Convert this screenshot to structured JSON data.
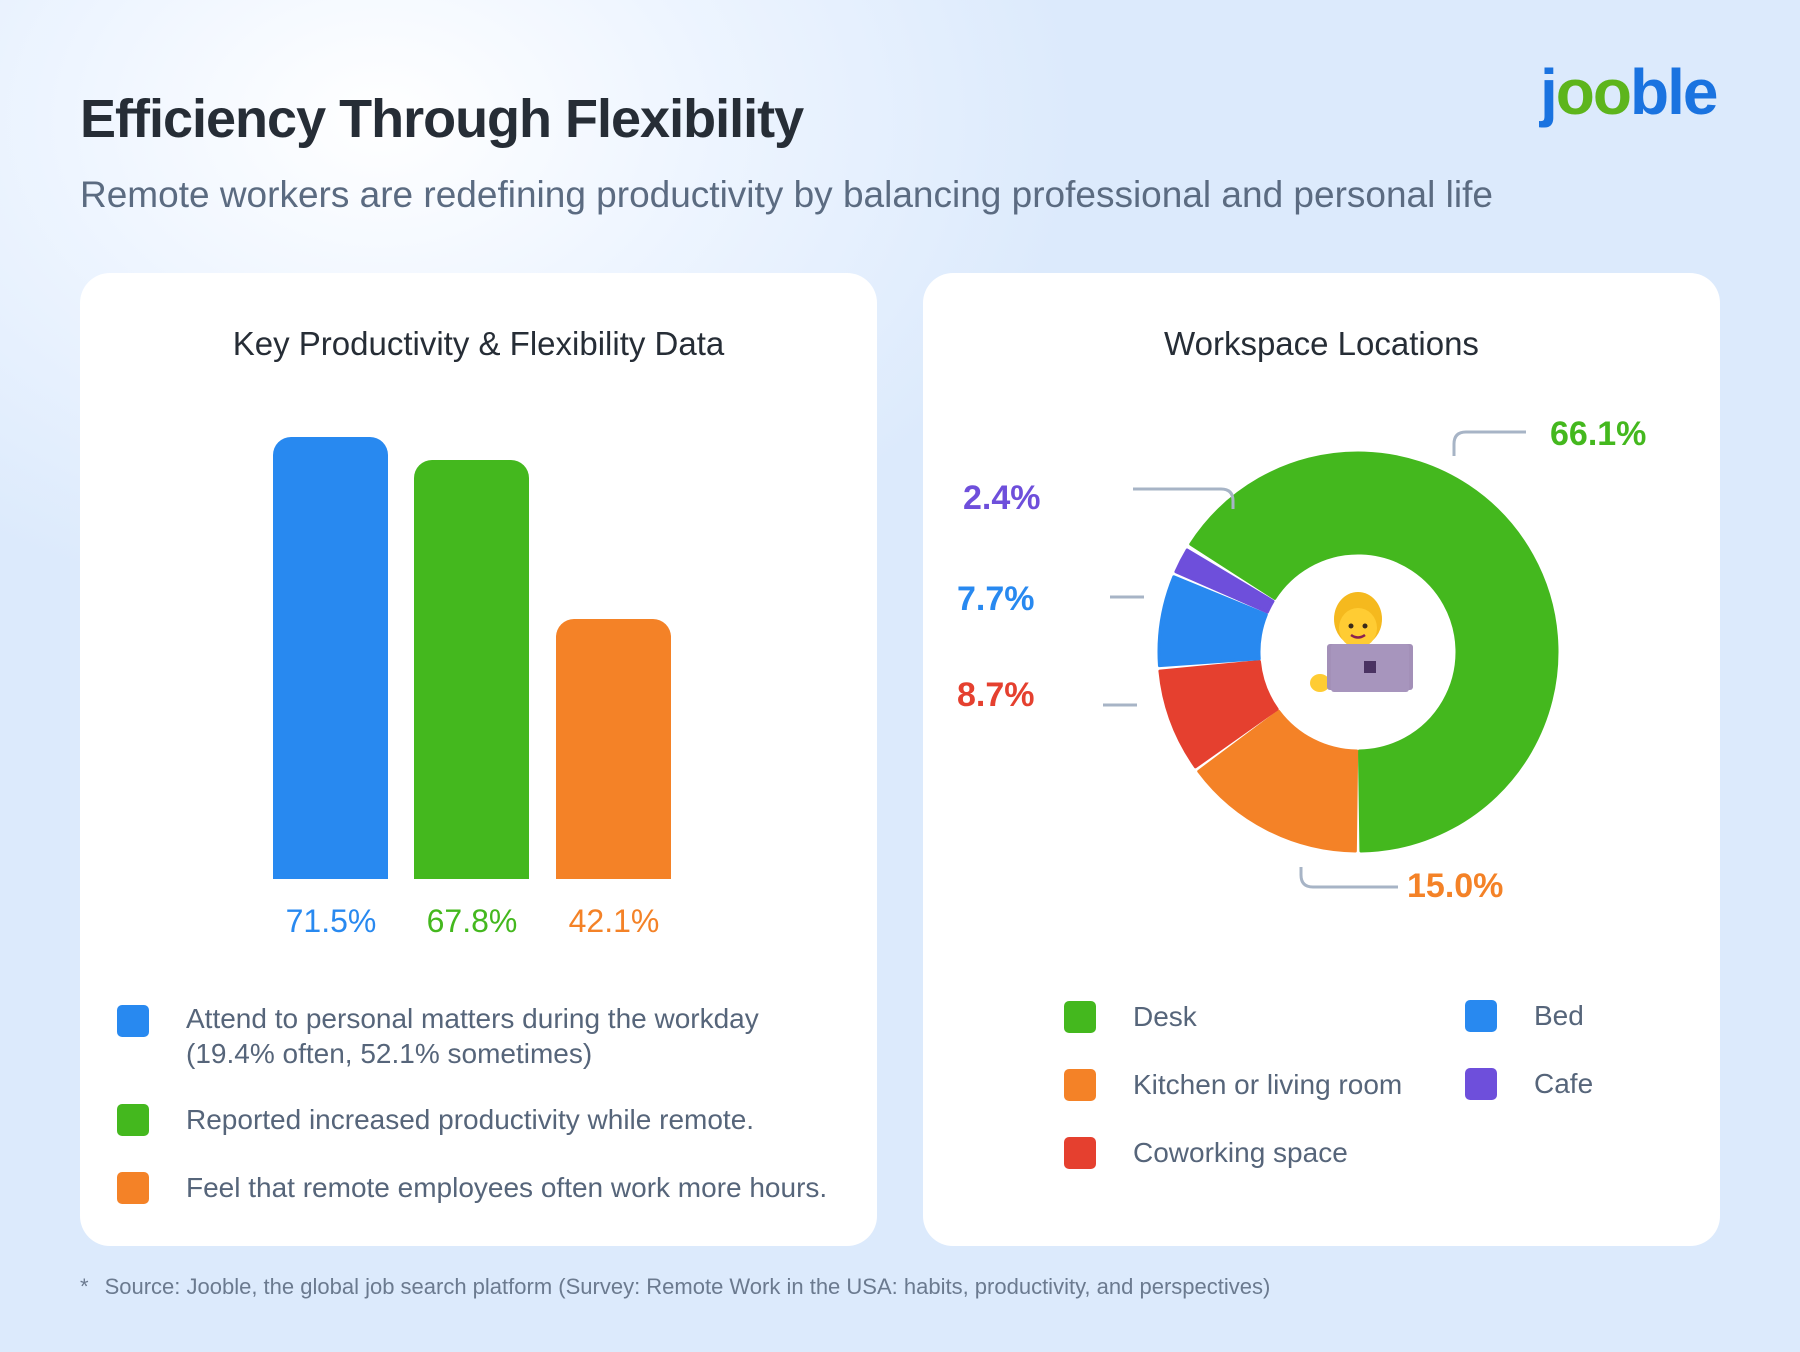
{
  "header": {
    "title": "Efficiency Through Flexibility",
    "subtitle": "Remote workers are redefining productivity by balancing professional and personal life",
    "logo": "jooble"
  },
  "colors": {
    "blue": "#2889F0",
    "green": "#44B81E",
    "orange": "#F48227",
    "red": "#E5402F",
    "purple": "#6E4FDB"
  },
  "chart_data": [
    {
      "type": "bar",
      "title": "Key Productivity & Flexibility Data",
      "unit": "%",
      "categories": [
        "Attend to personal matters during the workday (19.4% often, 52.1% sometimes)",
        "Reported increased productivity while remote.",
        "Feel that remote employees often work more hours."
      ],
      "values": [
        71.5,
        67.8,
        42.1
      ],
      "labels": [
        "71.5%",
        "67.8%",
        "42.1%"
      ],
      "colors": [
        "#2889F0",
        "#44B81E",
        "#F48227"
      ],
      "legend": [
        {
          "lines": [
            "Attend to personal matters during the workday",
            "(19.4% often, 52.1% sometimes)"
          ],
          "color": "#2889F0"
        },
        {
          "lines": [
            "Reported increased productivity while remote."
          ],
          "color": "#44B81E"
        },
        {
          "lines": [
            "Feel that remote employees often work more hours."
          ],
          "color": "#F48227"
        }
      ],
      "grid": false,
      "legend_placement": "bottom"
    },
    {
      "type": "pie",
      "variant": "donut",
      "title": "Workspace Locations",
      "slices": [
        {
          "name": "Desk",
          "value": 66.1,
          "label": "66.1%",
          "color": "#44B81E"
        },
        {
          "name": "Kitchen or living room",
          "value": 15.0,
          "label": "15.0%",
          "color": "#F48227"
        },
        {
          "name": "Coworking space",
          "value": 8.7,
          "label": "8.7%",
          "color": "#E5402F"
        },
        {
          "name": "Bed",
          "value": 7.7,
          "label": "7.7%",
          "color": "#2889F0"
        },
        {
          "name": "Cafe",
          "value": 2.4,
          "label": "2.4%",
          "color": "#6E4FDB"
        }
      ],
      "center_icon": "person-with-laptop-icon",
      "legend_placement": "bottom"
    }
  ],
  "footnote": {
    "marker": "*",
    "text": "Source: Jooble, the global job search platform (Survey: Remote Work in the USA: habits, productivity, and perspectives)"
  }
}
